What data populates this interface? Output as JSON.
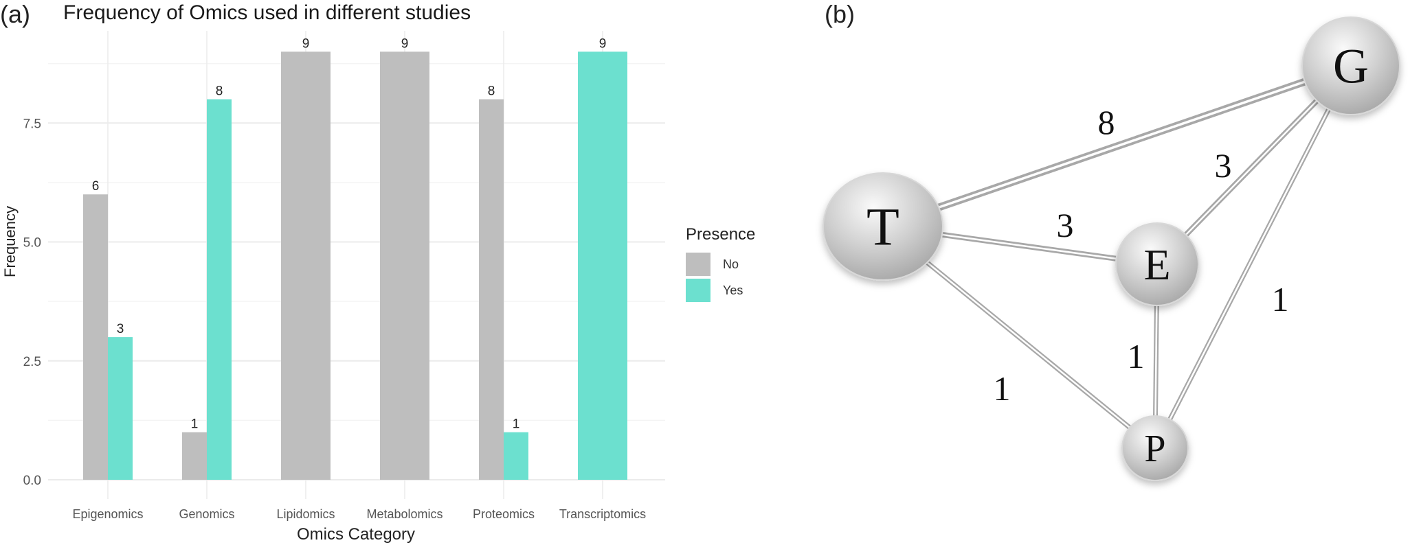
{
  "panels": {
    "a": {
      "label": "(a)"
    },
    "b": {
      "label": "(b)"
    }
  },
  "chart_data": [
    {
      "type": "bar",
      "title": "Frequency of Omics used in different studies",
      "xlabel": "Omics Category",
      "ylabel": "Frequency",
      "categories": [
        "Epigenomics",
        "Genomics",
        "Lipidomics",
        "Metabolomics",
        "Proteomics",
        "Transcriptomics"
      ],
      "series": [
        {
          "name": "No",
          "color": "#bebebe",
          "values": [
            6,
            1,
            9,
            9,
            8,
            0
          ]
        },
        {
          "name": "Yes",
          "color": "#6ce0cf",
          "values": [
            3,
            8,
            0,
            0,
            1,
            9
          ]
        }
      ],
      "bar_labels": [
        {
          "category": "Epigenomics",
          "No": "6",
          "Yes": "3"
        },
        {
          "category": "Genomics",
          "No": "1",
          "Yes": "8"
        },
        {
          "category": "Lipidomics",
          "No": "9",
          "Yes": null
        },
        {
          "category": "Metabolomics",
          "No": "9",
          "Yes": null
        },
        {
          "category": "Proteomics",
          "No": "8",
          "Yes": "1"
        },
        {
          "category": "Transcriptomics",
          "No": null,
          "Yes": "9"
        }
      ],
      "y_ticks": [
        "0.0",
        "2.5",
        "5.0",
        "7.5"
      ],
      "ylim": [
        0,
        9.4
      ],
      "grid": true,
      "legend": {
        "title": "Presence",
        "position": "right",
        "entries": [
          "No",
          "Yes"
        ]
      }
    },
    {
      "type": "network",
      "nodes": [
        {
          "id": "T",
          "label": "T"
        },
        {
          "id": "G",
          "label": "G"
        },
        {
          "id": "E",
          "label": "E"
        },
        {
          "id": "P",
          "label": "P"
        }
      ],
      "edges": [
        {
          "source": "T",
          "target": "G",
          "weight": 8,
          "label": "8"
        },
        {
          "source": "E",
          "target": "G",
          "weight": 3,
          "label": "3"
        },
        {
          "source": "T",
          "target": "E",
          "weight": 3,
          "label": "3"
        },
        {
          "source": "G",
          "target": "P",
          "weight": 1,
          "label": "1"
        },
        {
          "source": "E",
          "target": "P",
          "weight": 1,
          "label": "1"
        },
        {
          "source": "T",
          "target": "P",
          "weight": 1,
          "label": "1"
        }
      ]
    }
  ],
  "legend": {
    "title": "Presence",
    "items": [
      {
        "label": "No",
        "color": "#bebebe"
      },
      {
        "label": "Yes",
        "color": "#6ce0cf"
      }
    ]
  }
}
